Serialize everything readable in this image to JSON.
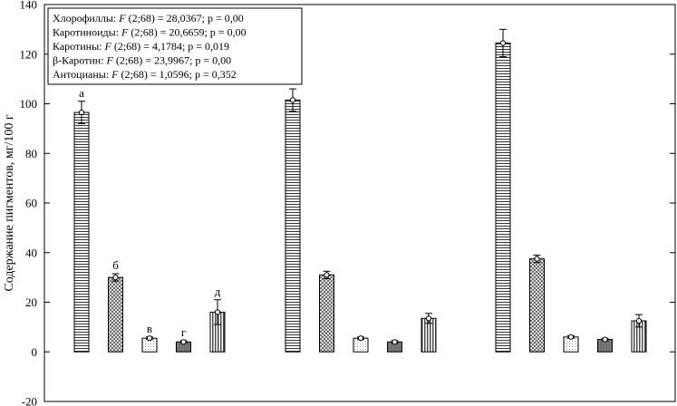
{
  "chart_data": {
    "type": "bar",
    "ylabel": "Содержание пигментов, мг/100 г",
    "ylim": [
      -20,
      140
    ],
    "yticks": [
      -20,
      0,
      20,
      40,
      60,
      80,
      100,
      120,
      140
    ],
    "groups": 3,
    "series": [
      {
        "values": [
          96.5,
          101.5,
          124.5
        ],
        "errors": [
          4.5,
          4.5,
          5.5
        ],
        "pattern": "hlines"
      },
      {
        "values": [
          30,
          31,
          37.5
        ],
        "errors": [
          1.5,
          1.5,
          1.5
        ],
        "pattern": "crosshatch"
      },
      {
        "values": [
          5.5,
          5.5,
          6
        ],
        "errors": [
          0.5,
          0.5,
          0.5
        ],
        "pattern": "dots"
      },
      {
        "values": [
          4,
          4,
          5
        ],
        "errors": [
          0.5,
          0.5,
          0.5
        ],
        "pattern": "dark"
      },
      {
        "values": [
          16,
          13.5,
          12.5
        ],
        "errors": [
          5,
          2,
          2.5
        ],
        "pattern": "vlines"
      }
    ],
    "bar_letters": [
      "а",
      "б",
      "в",
      "г",
      "д"
    ],
    "legend": [
      {
        "name": "Хлорофиллы: ",
        "stat": "F",
        "rest": " (2;68) = 28,0367; p = 0,00"
      },
      {
        "name": "Каротиноиды: ",
        "stat": "F",
        "rest": " (2;68) = 20,6659; p = 0,00"
      },
      {
        "name": "Каротины: ",
        "stat": "F",
        "rest": " (2;68) = 4,1784; p = 0,019"
      },
      {
        "name": "β-Каротин: ",
        "stat": "F",
        "rest": " (2;68) = 23,9967; p = 0,00"
      },
      {
        "name": "Антоцианы: ",
        "stat": "F",
        "rest": " (2;68) = 1,0596; p = 0,352"
      }
    ],
    "legend_placement": "top-left",
    "grid": false
  }
}
